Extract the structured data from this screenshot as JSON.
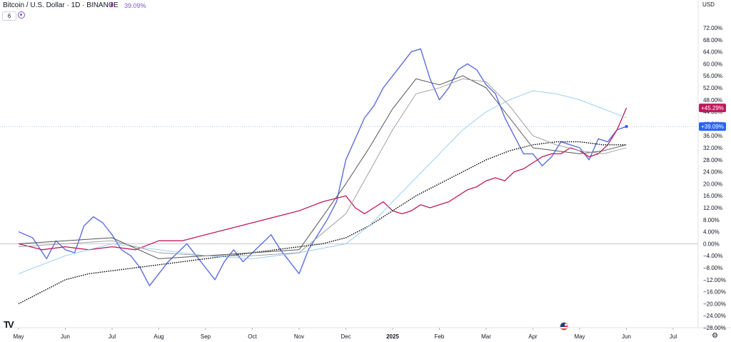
{
  "header": {
    "title": "Bitcoin / U.S. Dollar · 1D · BINANCE",
    "change_value": "39.09%",
    "indicator_count": "6",
    "currency": "USD"
  },
  "chart_data": {
    "type": "line",
    "x_axis_labels": [
      "May",
      "Jun",
      "Jul",
      "Aug",
      "Sep",
      "Oct",
      "Nov",
      "Dec",
      "2025",
      "Feb",
      "Mar",
      "Apr",
      "May",
      "Jun",
      "Jul"
    ],
    "y_ticks": [
      "72.00%",
      "68.00%",
      "64.00%",
      "60.00%",
      "56.00%",
      "52.00%",
      "48.00%",
      "44.00%",
      "40.00%",
      "36.00%",
      "32.00%",
      "28.00%",
      "24.00%",
      "20.00%",
      "16.00%",
      "12.00%",
      "8.00%",
      "4.00%",
      "0.00%",
      "−4.00%",
      "−8.00%",
      "−12.00%",
      "−16.00%",
      "−20.00%",
      "−24.00%",
      "−28.00%"
    ],
    "ylim": [
      -28,
      72
    ],
    "y_unit": "%",
    "grid": false,
    "series": [
      {
        "color": "#5b6ee1",
        "data": [
          [
            0,
            4
          ],
          [
            0.3,
            2
          ],
          [
            0.6,
            -5
          ],
          [
            0.8,
            1
          ],
          [
            1,
            -2
          ],
          [
            1.2,
            -3
          ],
          [
            1.4,
            6
          ],
          [
            1.6,
            9
          ],
          [
            1.8,
            7
          ],
          [
            2,
            3
          ],
          [
            2.2,
            -2
          ],
          [
            2.4,
            -4
          ],
          [
            2.6,
            -8
          ],
          [
            2.8,
            -14
          ],
          [
            3,
            -10
          ],
          [
            3.2,
            -6
          ],
          [
            3.4,
            -3
          ],
          [
            3.6,
            0
          ],
          [
            3.8,
            -4
          ],
          [
            4,
            -8
          ],
          [
            4.2,
            -12
          ],
          [
            4.4,
            -6
          ],
          [
            4.6,
            -2
          ],
          [
            4.8,
            -6
          ],
          [
            5,
            -3
          ],
          [
            5.2,
            0
          ],
          [
            5.4,
            3
          ],
          [
            5.6,
            -2
          ],
          [
            5.8,
            -6
          ],
          [
            6,
            -10
          ],
          [
            6.2,
            -2
          ],
          [
            6.4,
            3
          ],
          [
            6.6,
            8
          ],
          [
            6.8,
            14
          ],
          [
            7,
            28
          ],
          [
            7.2,
            35
          ],
          [
            7.4,
            42
          ],
          [
            7.6,
            46
          ],
          [
            7.8,
            52
          ],
          [
            8,
            56
          ],
          [
            8.2,
            60
          ],
          [
            8.4,
            64
          ],
          [
            8.6,
            65
          ],
          [
            8.8,
            55
          ],
          [
            9,
            48
          ],
          [
            9.2,
            52
          ],
          [
            9.4,
            58
          ],
          [
            9.6,
            60
          ],
          [
            9.8,
            58
          ],
          [
            10,
            53
          ],
          [
            10.2,
            50
          ],
          [
            10.4,
            42
          ],
          [
            10.6,
            36
          ],
          [
            10.8,
            30
          ],
          [
            11,
            30
          ],
          [
            11.2,
            26
          ],
          [
            11.4,
            29
          ],
          [
            11.6,
            34
          ],
          [
            11.8,
            33
          ],
          [
            12,
            32
          ],
          [
            12.2,
            28
          ],
          [
            12.4,
            35
          ],
          [
            12.6,
            34
          ],
          [
            12.8,
            38
          ],
          [
            13,
            39.09
          ]
        ]
      },
      {
        "color": "#c2185b",
        "data": [
          [
            0,
            0
          ],
          [
            0.5,
            -2
          ],
          [
            1,
            -1
          ],
          [
            1.5,
            -2
          ],
          [
            2,
            -1
          ],
          [
            2.5,
            -2
          ],
          [
            3,
            1
          ],
          [
            3.5,
            1
          ],
          [
            4,
            3
          ],
          [
            4.5,
            5
          ],
          [
            5,
            7
          ],
          [
            5.5,
            9
          ],
          [
            6,
            11
          ],
          [
            6.5,
            14
          ],
          [
            7,
            16
          ],
          [
            7.2,
            12
          ],
          [
            7.4,
            10
          ],
          [
            7.6,
            12
          ],
          [
            7.8,
            14
          ],
          [
            8,
            11
          ],
          [
            8.2,
            10
          ],
          [
            8.4,
            11
          ],
          [
            8.6,
            13
          ],
          [
            8.8,
            12
          ],
          [
            9,
            13
          ],
          [
            9.2,
            14
          ],
          [
            9.4,
            16
          ],
          [
            9.6,
            18
          ],
          [
            9.8,
            19
          ],
          [
            10,
            21
          ],
          [
            10.2,
            22
          ],
          [
            10.4,
            21
          ],
          [
            10.6,
            24
          ],
          [
            10.8,
            25
          ],
          [
            11,
            27
          ],
          [
            11.2,
            29
          ],
          [
            11.4,
            30
          ],
          [
            11.6,
            30
          ],
          [
            11.8,
            32
          ],
          [
            12,
            31
          ],
          [
            12.2,
            29
          ],
          [
            12.4,
            30
          ],
          [
            12.6,
            33
          ],
          [
            12.8,
            38
          ],
          [
            13,
            45.29
          ]
        ]
      },
      {
        "color": "#000000",
        "data": [
          [
            0,
            -20
          ],
          [
            0.5,
            -16
          ],
          [
            1,
            -12
          ],
          [
            1.5,
            -10
          ],
          [
            2,
            -9
          ],
          [
            2.5,
            -8
          ],
          [
            3,
            -7
          ],
          [
            3.5,
            -6
          ],
          [
            4,
            -5
          ],
          [
            4.5,
            -4
          ],
          [
            5,
            -3
          ],
          [
            5.5,
            -2
          ],
          [
            6,
            -1
          ],
          [
            6.5,
            0
          ],
          [
            7,
            2
          ],
          [
            7.5,
            6
          ],
          [
            8,
            11
          ],
          [
            8.5,
            16
          ],
          [
            9,
            20
          ],
          [
            9.5,
            24
          ],
          [
            10,
            28
          ],
          [
            10.5,
            31
          ],
          [
            11,
            33
          ],
          [
            11.5,
            34
          ],
          [
            12,
            34
          ],
          [
            12.5,
            33
          ],
          [
            13,
            33
          ]
        ]
      },
      {
        "color": "#90caf9",
        "data": [
          [
            0,
            -10
          ],
          [
            1,
            -4
          ],
          [
            2,
            0
          ],
          [
            3,
            -2
          ],
          [
            4,
            -4
          ],
          [
            5,
            -5
          ],
          [
            6,
            -3
          ],
          [
            7,
            0
          ],
          [
            7.5,
            6
          ],
          [
            8,
            14
          ],
          [
            8.5,
            22
          ],
          [
            9,
            30
          ],
          [
            9.5,
            38
          ],
          [
            10,
            44
          ],
          [
            10.5,
            48
          ],
          [
            11,
            51
          ],
          [
            11.5,
            50
          ],
          [
            12,
            48
          ],
          [
            12.5,
            45
          ],
          [
            13,
            42
          ]
        ]
      },
      {
        "color": "#555555",
        "data": [
          [
            0,
            0
          ],
          [
            1,
            1
          ],
          [
            2,
            2
          ],
          [
            3,
            -5
          ],
          [
            4,
            -4
          ],
          [
            5,
            -3
          ],
          [
            6,
            -2
          ],
          [
            7,
            20
          ],
          [
            7.5,
            32
          ],
          [
            8,
            45
          ],
          [
            8.5,
            55
          ],
          [
            9,
            53
          ],
          [
            9.5,
            56
          ],
          [
            10,
            52
          ],
          [
            10.5,
            42
          ],
          [
            11,
            32
          ],
          [
            11.5,
            31
          ],
          [
            12,
            30
          ],
          [
            12.5,
            31
          ],
          [
            13,
            33
          ]
        ]
      },
      {
        "color": "#999999",
        "data": [
          [
            0,
            -1
          ],
          [
            1,
            0
          ],
          [
            2,
            1
          ],
          [
            3,
            -3
          ],
          [
            4,
            -4
          ],
          [
            5,
            -4
          ],
          [
            6,
            -3
          ],
          [
            7,
            10
          ],
          [
            7.5,
            24
          ],
          [
            8,
            38
          ],
          [
            8.5,
            50
          ],
          [
            9,
            52
          ],
          [
            9.5,
            55
          ],
          [
            10,
            54
          ],
          [
            10.5,
            46
          ],
          [
            11,
            36
          ],
          [
            11.5,
            33
          ],
          [
            12,
            31
          ],
          [
            12.5,
            30
          ],
          [
            13,
            32
          ]
        ]
      }
    ],
    "price_tags": [
      {
        "text": "+45.29%",
        "value": 45.29,
        "color": "#c2185b"
      },
      {
        "text": "+39.09%",
        "value": 39.09,
        "color": "#2962ff"
      }
    ]
  }
}
